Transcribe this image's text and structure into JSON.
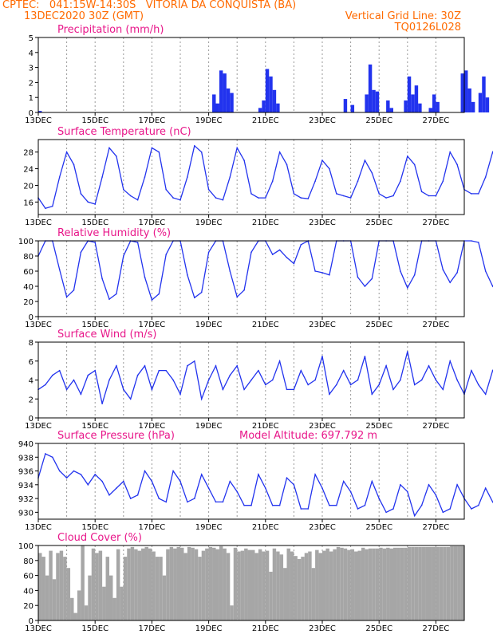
{
  "header": {
    "left_line1": "CPTEC:   041:15W-14:30S   VITORIA DA CONQUISTA (BA)",
    "left_line2": "13DEC2020 30Z (GMT)",
    "right_line2": "Vertical Grid Line: 30Z",
    "right_line3": "TQ0126L028"
  },
  "colors": {
    "header": "#ff6a00",
    "title": "#e8178a",
    "series": "#2233ee",
    "cloud": "#a6a6a6",
    "grid": "#999999"
  },
  "chart_data": [
    {
      "id": "precip",
      "type": "bar",
      "title": "Precipitation (mm/h)",
      "xlabel": "",
      "ylabel": "",
      "ylim": [
        0,
        5
      ],
      "yticks": [
        0,
        1,
        2,
        3,
        4,
        5
      ],
      "xticks": [
        "13DEC",
        "15DEC",
        "17DEC",
        "19DEC",
        "21DEC",
        "23DEC",
        "25DEC",
        "27DEC"
      ],
      "x_start_day": 13,
      "x_end_day": 28,
      "sample_hours": 3,
      "values": [
        0.1,
        0,
        0,
        0,
        0,
        0,
        0,
        0,
        0,
        0,
        0,
        0,
        0,
        0,
        0,
        0,
        0,
        0,
        0,
        0,
        0,
        0,
        0,
        0,
        0,
        0,
        0,
        0,
        0,
        0,
        0,
        0,
        0,
        0,
        0,
        0,
        0,
        0,
        0,
        0,
        0,
        0,
        0,
        0,
        0,
        0,
        0,
        0,
        0,
        1.2,
        0.6,
        2.8,
        2.6,
        1.6,
        1.3,
        0,
        0,
        0,
        0,
        0,
        0,
        0,
        0.3,
        0.8,
        2.9,
        2.4,
        1.5,
        0.6,
        0,
        0,
        0,
        0,
        0,
        0,
        0,
        0,
        0,
        0,
        0,
        0,
        0,
        0,
        0,
        0,
        0,
        0,
        0.9,
        0,
        0.5,
        0,
        0,
        0,
        1.2,
        3.2,
        1.5,
        1.4,
        0,
        0,
        0.8,
        0.3,
        0,
        0,
        0,
        0.8,
        2.4,
        1.2,
        1.8,
        0.6,
        0,
        0,
        0.3,
        1.2,
        0.7,
        0,
        0,
        0,
        0,
        0,
        0,
        2.6,
        2.8,
        1.6,
        0.7,
        0,
        1.3,
        2.4,
        1.0,
        0,
        0,
        0.4,
        0.6,
        0,
        2.3,
        1.8,
        0,
        1.2,
        1.0,
        2.7,
        1.2,
        1.5,
        2.2
      ]
    },
    {
      "id": "temp",
      "type": "line",
      "title": "Surface Temperature (nC)",
      "xlabel": "",
      "ylabel": "",
      "ylim": [
        13,
        31
      ],
      "yticks": [
        16,
        20,
        24,
        28
      ],
      "xticks": [
        "13DEC",
        "15DEC",
        "17DEC",
        "19DEC",
        "21DEC",
        "23DEC",
        "25DEC",
        "27DEC"
      ],
      "x_start_day": 13,
      "x_end_day": 28,
      "sample_hours": 6,
      "values": [
        17,
        14.5,
        15,
        22,
        28,
        25,
        18,
        16,
        15.5,
        22,
        29,
        27,
        19,
        17.5,
        16.5,
        22,
        29,
        28,
        19,
        17,
        16.5,
        22,
        29.5,
        28,
        19,
        17,
        16.5,
        22,
        29,
        26,
        18,
        17,
        17,
        21,
        28,
        25,
        18,
        17,
        16.8,
        21,
        26,
        24,
        18,
        17.5,
        17,
        21,
        26,
        23,
        18,
        17,
        17.5,
        21,
        27,
        25,
        18.5,
        17.5,
        17.5,
        21,
        28,
        25,
        19,
        18,
        18,
        22,
        28,
        25,
        19.5,
        18.5,
        18.8,
        22,
        28,
        25,
        19.5,
        18.5,
        19.5,
        23,
        29,
        26,
        20.5,
        19.5,
        19.5,
        22,
        26,
        23.5,
        21,
        20,
        20.5,
        23,
        24,
        22,
        21,
        20.5
      ]
    },
    {
      "id": "rh",
      "type": "line",
      "title": "Relative Humidity (%)",
      "xlabel": "",
      "ylabel": "",
      "ylim": [
        0,
        100
      ],
      "yticks": [
        0,
        20,
        40,
        60,
        80,
        100
      ],
      "xticks": [
        "13DEC",
        "15DEC",
        "17DEC",
        "19DEC",
        "21DEC",
        "23DEC",
        "25DEC",
        "27DEC"
      ],
      "x_start_day": 13,
      "x_end_day": 28,
      "sample_hours": 6,
      "values": [
        80,
        100,
        100,
        62,
        26,
        35,
        85,
        100,
        98,
        50,
        23,
        30,
        80,
        100,
        98,
        52,
        22,
        30,
        82,
        100,
        100,
        55,
        25,
        32,
        85,
        100,
        100,
        60,
        26,
        35,
        85,
        100,
        100,
        82,
        88,
        78,
        70,
        95,
        100,
        60,
        58,
        55,
        100,
        100,
        100,
        52,
        40,
        50,
        100,
        100,
        100,
        60,
        38,
        55,
        100,
        100,
        100,
        62,
        45,
        58,
        100,
        100,
        98,
        60,
        40,
        55,
        95,
        100,
        100,
        62,
        50,
        58,
        100,
        100,
        100,
        65,
        47,
        55,
        95,
        100,
        100,
        78,
        62,
        80,
        92,
        100,
        85,
        78,
        92,
        100
      ]
    },
    {
      "id": "wind",
      "type": "line",
      "title": "Surface Wind (m/s)",
      "xlabel": "",
      "ylabel": "",
      "ylim": [
        0,
        8
      ],
      "yticks": [
        0,
        2,
        4,
        6,
        8
      ],
      "xticks": [
        "13DEC",
        "15DEC",
        "17DEC",
        "19DEC",
        "21DEC",
        "23DEC",
        "25DEC",
        "27DEC"
      ],
      "x_start_day": 13,
      "x_end_day": 28,
      "sample_hours": 6,
      "values": [
        3,
        3.5,
        4.5,
        5,
        3,
        4,
        2.5,
        4.5,
        5,
        1.5,
        4,
        5.5,
        3,
        2,
        4.5,
        5.5,
        3,
        5,
        5,
        4,
        2.5,
        5.5,
        6,
        2,
        4,
        5.5,
        3,
        4.5,
        5.5,
        3,
        4,
        5,
        3.5,
        4,
        6,
        3,
        3,
        5,
        3.5,
        4,
        6.5,
        2.5,
        3.5,
        5,
        3.5,
        4,
        6.5,
        2.5,
        3.5,
        5.5,
        3,
        4,
        7,
        3.5,
        4,
        5.5,
        4,
        3,
        6,
        4,
        2.5,
        5,
        3.5,
        2.5,
        5,
        4,
        3,
        5.5,
        3,
        2.5,
        5.5,
        4,
        3,
        5.5,
        2,
        2.5,
        6,
        3.5,
        2,
        5,
        2.5,
        3,
        6,
        3.5,
        2,
        5.5,
        3,
        2.5,
        7,
        1.5,
        3.5
      ]
    },
    {
      "id": "pres",
      "type": "line",
      "title": "Surface Pressure (hPa)",
      "annotation": "Model Altitude: 697.792 m",
      "xlabel": "",
      "ylabel": "",
      "ylim": [
        929,
        940
      ],
      "yticks": [
        930,
        932,
        934,
        936,
        938,
        940
      ],
      "xticks": [
        "13DEC",
        "15DEC",
        "17DEC",
        "19DEC",
        "21DEC",
        "23DEC",
        "25DEC",
        "27DEC"
      ],
      "x_start_day": 13,
      "x_end_day": 28,
      "sample_hours": 6,
      "values": [
        935,
        938.5,
        938,
        936,
        935,
        936,
        935.5,
        934,
        935.5,
        934.5,
        932.5,
        933.5,
        934.5,
        932,
        932.5,
        936,
        934.5,
        932,
        931.5,
        936,
        934.5,
        931.5,
        932,
        935.5,
        933.5,
        931.5,
        931.5,
        934.5,
        933,
        931,
        931,
        935.5,
        933.5,
        931,
        931,
        935,
        934,
        930.5,
        930.5,
        935.5,
        933.5,
        931,
        931,
        934.5,
        933,
        930.5,
        931,
        934.5,
        932,
        930,
        930.5,
        934,
        933,
        929.5,
        931,
        934,
        932.5,
        930,
        930.5,
        934,
        932,
        930.5,
        931,
        933.5,
        931.5,
        930,
        930.5,
        933.5,
        932,
        930,
        930.5,
        934,
        932,
        930,
        931.5,
        933.5,
        932.5,
        931,
        931.5,
        934.5,
        933,
        930.5,
        931,
        934,
        932.5,
        930,
        931.5,
        934,
        930.5,
        931,
        933.5
      ]
    },
    {
      "id": "cloud",
      "type": "bar",
      "title": "Cloud Cover (%)",
      "xlabel": "",
      "ylabel": "",
      "ylim": [
        0,
        100
      ],
      "yticks": [
        0,
        20,
        40,
        60,
        80,
        100
      ],
      "xticks": [
        "13DEC",
        "15DEC",
        "17DEC",
        "19DEC",
        "21DEC",
        "23DEC",
        "25DEC",
        "27DEC"
      ],
      "x_start_day": 13,
      "x_end_day": 28,
      "sample_hours": 3,
      "values": [
        90,
        85,
        60,
        93,
        55,
        90,
        93,
        85,
        70,
        30,
        10,
        40,
        100,
        20,
        60,
        96,
        90,
        93,
        45,
        85,
        60,
        30,
        95,
        45,
        85,
        96,
        98,
        95,
        93,
        96,
        98,
        96,
        92,
        85,
        85,
        60,
        95,
        98,
        96,
        98,
        97,
        90,
        98,
        97,
        95,
        85,
        93,
        96,
        98,
        97,
        95,
        99,
        96,
        90,
        20,
        97,
        92,
        93,
        96,
        94,
        94,
        90,
        95,
        92,
        93,
        65,
        96,
        92,
        88,
        70,
        96,
        92,
        86,
        82,
        85,
        90,
        92,
        70,
        94,
        90,
        93,
        96,
        92,
        95,
        98,
        97,
        96,
        94,
        95,
        92,
        93,
        97,
        95,
        96,
        96,
        96,
        97,
        96,
        97,
        96,
        97,
        97,
        97,
        97,
        98,
        98,
        98,
        98,
        98,
        98,
        98,
        98,
        98,
        98,
        98,
        98,
        99,
        99,
        99,
        99
      ]
    }
  ]
}
